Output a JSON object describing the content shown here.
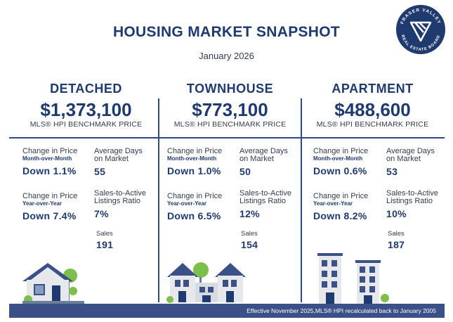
{
  "header": {
    "title": "HOUSING MARKET SNAPSHOT",
    "date": "January 2026",
    "logo_text": "FRASER VALLEY REAL ESTATE BOARD"
  },
  "columns": [
    {
      "name": "DETACHED",
      "price": "$1,373,100",
      "benchmark_label": "MLS® HPI BENCHMARK PRICE",
      "mom_label": "Change in Price",
      "mom_sub": "Month-over-Month",
      "mom_value": "Down 1.1%",
      "days_label_1": "Average Days",
      "days_label_2": "on Market",
      "days_value": "55",
      "yoy_label": "Change in Price",
      "yoy_sub": "Year-over-Year",
      "yoy_value": "Down 7.4%",
      "ratio_label_1": "Sales-to-Active",
      "ratio_label_2": "Listings Ratio",
      "ratio_value": "7%",
      "sales_label": "Sales",
      "sales_value": "191"
    },
    {
      "name": "TOWNHOUSE",
      "price": "$773,100",
      "benchmark_label": "MLS® HPI BENCHMARK PRICE",
      "mom_label": "Change in Price",
      "mom_sub": "Month-over-Month",
      "mom_value": "Down 1.0%",
      "days_label_1": "Average Days",
      "days_label_2": "on Market",
      "days_value": "50",
      "yoy_label": "Change in Price",
      "yoy_sub": "Year-over-Year",
      "yoy_value": "Down 6.5%",
      "ratio_label_1": "Sales-to-Active",
      "ratio_label_2": "Listings Ratio",
      "ratio_value": "12%",
      "sales_label": "Sales",
      "sales_value": "154"
    },
    {
      "name": "APARTMENT",
      "price": "$488,600",
      "benchmark_label": "MLS® HPI BENCHMARK PRICE",
      "mom_label": "Change in Price",
      "mom_sub": "Month-over-Month",
      "mom_value": "Down 0.6%",
      "days_label_1": "Average Days",
      "days_label_2": "on Market",
      "days_value": "53",
      "yoy_label": "Change in Price",
      "yoy_sub": "Year-over-Year",
      "yoy_value": "Down 8.2%",
      "ratio_label_1": "Sales-to-Active",
      "ratio_label_2": "Listings Ratio",
      "ratio_value": "10%",
      "sales_label": "Sales",
      "sales_value": "187"
    }
  ],
  "footer": {
    "note": "Effective November 2025,MLS® HPI recalculated back to January 2005"
  },
  "colors": {
    "navy": "#1f3a6e",
    "footer_bg": "#3c5088",
    "accent_green": "#7cc04b"
  }
}
